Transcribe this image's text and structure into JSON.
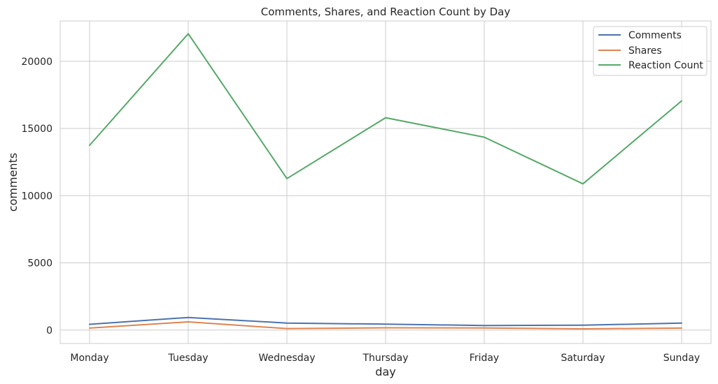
{
  "chart_data": {
    "type": "line",
    "title": "Comments, Shares, and Reaction Count by Day",
    "xlabel": "day",
    "ylabel": "comments",
    "categories": [
      "Monday",
      "Tuesday",
      "Wednesday",
      "Thursday",
      "Friday",
      "Saturday",
      "Sunday"
    ],
    "ylim": [
      -1000,
      23000
    ],
    "yticks": [
      0,
      5000,
      10000,
      15000,
      20000
    ],
    "grid": true,
    "legend_position": "top-right",
    "series": [
      {
        "name": "Comments",
        "color": "#4c72b0",
        "values": [
          430,
          940,
          520,
          440,
          340,
          360,
          520
        ]
      },
      {
        "name": "Shares",
        "color": "#dd8452",
        "values": [
          150,
          610,
          110,
          170,
          160,
          90,
          150
        ]
      },
      {
        "name": "Reaction Count",
        "color": "#55a868",
        "values": [
          13750,
          22050,
          11270,
          15800,
          14350,
          10880,
          17050
        ]
      }
    ]
  }
}
